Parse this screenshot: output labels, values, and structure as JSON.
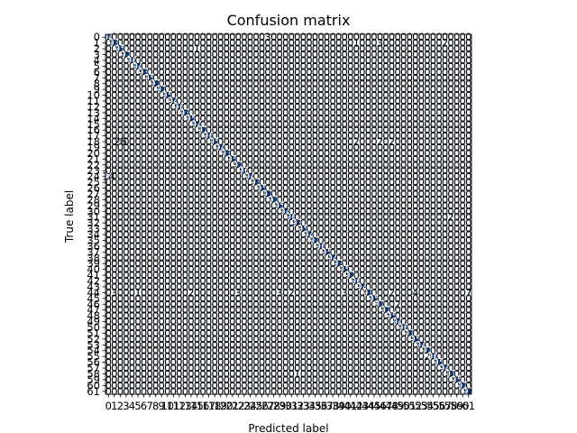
{
  "chart_data": {
    "type": "heatmap",
    "title": "Confusion matrix",
    "xlabel": "Predicted label",
    "ylabel": "True label",
    "n_classes": 62,
    "x_tick_labels": [
      "0",
      "1",
      "2",
      "3",
      "4",
      "5",
      "6",
      "7",
      "8",
      "9",
      "10",
      "11",
      "12",
      "13",
      "14",
      "15",
      "16",
      "17",
      "18",
      "19",
      "20",
      "21",
      "22",
      "23",
      "24",
      "25",
      "26",
      "27",
      "28",
      "29",
      "30",
      "31",
      "32",
      "33",
      "34",
      "35",
      "36",
      "37",
      "38",
      "39",
      "40",
      "41",
      "42",
      "43",
      "44",
      "45",
      "46",
      "47",
      "48",
      "49",
      "50",
      "51",
      "52",
      "53",
      "54",
      "55",
      "56",
      "57",
      "58",
      "59",
      "60",
      "61"
    ],
    "y_tick_labels": [
      "0",
      "1",
      "2",
      "3",
      "4",
      "5",
      "6",
      "7",
      "8",
      "9",
      "10",
      "11",
      "12",
      "13",
      "14",
      "15",
      "16",
      "17",
      "18",
      "19",
      "20",
      "21",
      "22",
      "23",
      "24",
      "25",
      "26",
      "27",
      "28",
      "29",
      "30",
      "31",
      "32",
      "33",
      "34",
      "35",
      "36",
      "37",
      "38",
      "39",
      "40",
      "41",
      "42",
      "43",
      "44",
      "45",
      "46",
      "47",
      "48",
      "49",
      "50",
      "51",
      "52",
      "53",
      "54",
      "55",
      "56",
      "57",
      "58",
      "59",
      "60",
      "61"
    ],
    "colormap": "Blues",
    "colors": {
      "low": "#f7fbff",
      "high": "#08306b",
      "text_dark": "#000000",
      "text_light": "#ffffff"
    },
    "off_diagonal_default": 0,
    "diagonal_values": [
      94,
      93,
      95,
      92,
      96,
      94,
      93,
      95,
      97,
      92,
      95,
      94,
      96,
      93,
      95,
      94,
      92,
      96,
      95,
      94,
      93,
      95,
      92,
      96,
      94,
      93,
      95,
      97,
      92,
      95,
      94,
      96,
      93,
      95,
      94,
      92,
      96,
      95,
      94,
      93,
      95,
      92,
      96,
      94,
      93,
      95,
      87,
      92,
      95,
      94,
      96,
      93,
      95,
      94,
      92,
      96,
      95,
      94,
      93,
      95,
      92,
      97
    ],
    "off_diagonal_nonzero": [
      {
        "row": 0,
        "col": 27,
        "value": 3
      },
      {
        "row": 1,
        "col": 42,
        "value": 1
      },
      {
        "row": 1,
        "col": 46,
        "value": 3
      },
      {
        "row": 1,
        "col": 57,
        "value": 2
      },
      {
        "row": 2,
        "col": 15,
        "value": 1
      },
      {
        "row": 18,
        "col": 2,
        "value": 26
      },
      {
        "row": 18,
        "col": 42,
        "value": 2
      },
      {
        "row": 18,
        "col": 46,
        "value": 2
      },
      {
        "row": 18,
        "col": 48,
        "value": 2
      },
      {
        "row": 24,
        "col": 0,
        "value": 14
      },
      {
        "row": 31,
        "col": 58,
        "value": 2
      },
      {
        "row": 44,
        "col": 1,
        "value": 3
      },
      {
        "row": 44,
        "col": 5,
        "value": 1
      },
      {
        "row": 44,
        "col": 14,
        "value": 2
      },
      {
        "row": 44,
        "col": 22,
        "value": 3
      },
      {
        "row": 44,
        "col": 29,
        "value": 3
      },
      {
        "row": 44,
        "col": 31,
        "value": 2
      },
      {
        "row": 44,
        "col": 40,
        "value": 3
      },
      {
        "row": 44,
        "col": 48,
        "value": 2
      },
      {
        "row": 44,
        "col": 52,
        "value": 4
      },
      {
        "row": 44,
        "col": 61,
        "value": 7
      },
      {
        "row": 46,
        "col": 49,
        "value": 2
      },
      {
        "row": 55,
        "col": 54,
        "value": 2
      },
      {
        "row": 58,
        "col": 32,
        "value": 1
      }
    ]
  }
}
